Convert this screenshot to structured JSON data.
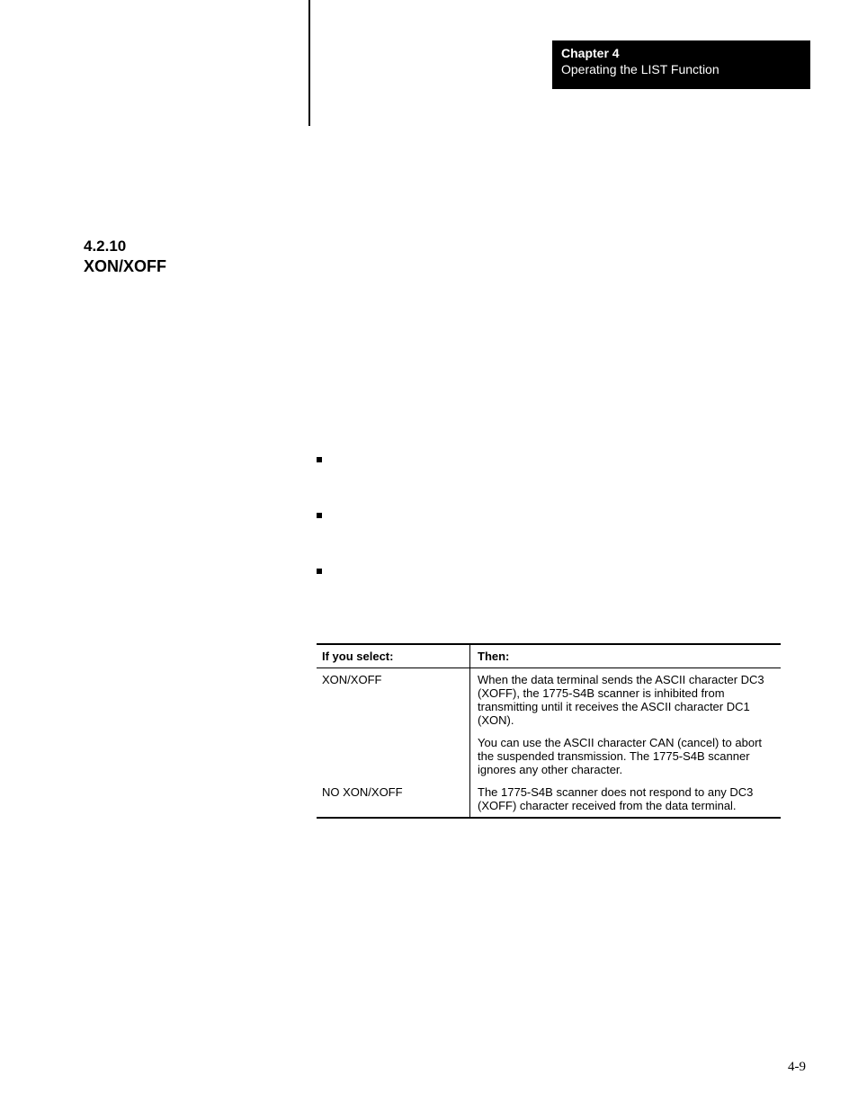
{
  "header": {
    "chapter": "Chapter 4",
    "title": "Operating the LIST Function"
  },
  "section": {
    "number": "4.2.10",
    "title": "XON/XOFF"
  },
  "table": {
    "headers": {
      "c1": "If you select:",
      "c2": "Then:"
    },
    "rows": [
      {
        "c1": "XON/XOFF",
        "c2a": "When the data terminal sends the ASCII character DC3 (XOFF), the 1775-S4B scanner is inhibited from transmitting until it receives the ASCII character DC1 (XON).",
        "c2b": "You can use the ASCII character CAN (cancel) to abort the suspended transmission. The 1775-S4B scanner ignores any other character."
      },
      {
        "c1": "NO XON/XOFF",
        "c2": "The 1775-S4B scanner does not respond to any DC3 (XOFF) character received from the data terminal."
      }
    ]
  },
  "pageNumber": "4-9"
}
